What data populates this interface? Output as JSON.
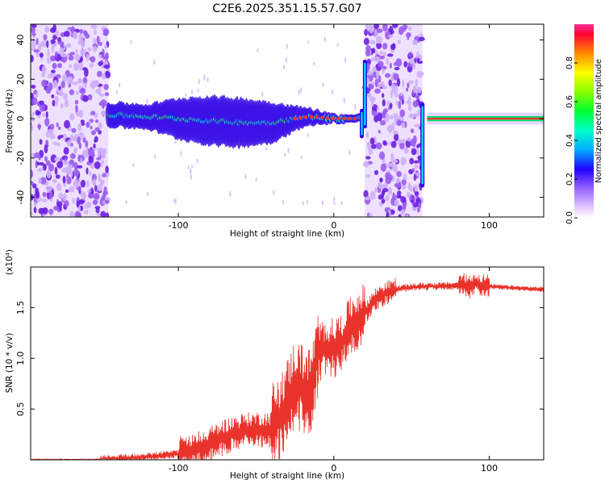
{
  "figure": {
    "title": "C2E6.2025.351.15.57.G07"
  },
  "chart_data": [
    {
      "type": "heatmap",
      "name": "spectrogram",
      "xlabel": "Height of straight line (km)",
      "ylabel": "Frequency (Hz)",
      "xlim": [
        -195,
        135
      ],
      "ylim": [
        -50,
        48
      ],
      "x_ticks": [
        -100,
        0,
        100
      ],
      "x_tick_labels": [
        "-100",
        "0",
        "100"
      ],
      "y_ticks": [
        -40,
        -20,
        0,
        20,
        40
      ],
      "y_tick_labels": [
        "-40",
        "-20",
        "0",
        "20",
        "40"
      ],
      "colorbar": {
        "label": "Normalized spectral amplitude",
        "range": [
          0,
          1
        ],
        "ticks": [
          0.0,
          0.2,
          0.4,
          0.6,
          0.8
        ],
        "tick_labels": [
          "0.0",
          "0.2",
          "0.4",
          "0.6",
          "0.8"
        ]
      },
      "noise_regions": [
        {
          "x_start": -195,
          "x_end": -145
        },
        {
          "x_start": 20,
          "x_end": 57
        }
      ],
      "ridge": {
        "description": "tone near 0 Hz",
        "x": [
          -145,
          -120,
          -100,
          -80,
          -60,
          -40,
          -25,
          -15,
          0,
          10,
          18
        ],
        "center_hz": [
          2,
          1,
          0,
          -1,
          -2,
          -2,
          0,
          1,
          0,
          0,
          0
        ],
        "spread_hz": [
          3,
          3,
          5,
          6,
          6,
          5,
          3,
          2,
          1,
          1,
          1
        ]
      },
      "spikes": [
        {
          "x": 18,
          "low_hz": -10,
          "high_hz": 5
        },
        {
          "x": 20,
          "low_hz": -5,
          "high_hz": 30
        },
        {
          "x": 57,
          "low_hz": -35,
          "high_hz": 8
        }
      ],
      "clean_tone": {
        "x_start": 60,
        "x_end": 135,
        "hz": 0
      }
    },
    {
      "type": "line",
      "name": "snr",
      "xlabel": "Height of straight line (km)",
      "ylabel": "SNR (10 * v/v)",
      "y_multiplier": "(x10⁴)",
      "xlim": [
        -195,
        135
      ],
      "ylim": [
        0,
        1.9
      ],
      "x_ticks": [
        -100,
        0,
        100
      ],
      "x_tick_labels": [
        "-100",
        "0",
        "100"
      ],
      "y_ticks": [
        0.5,
        1.0,
        1.5
      ],
      "y_tick_labels": [
        "0.5",
        "1.0",
        "1.5"
      ],
      "color": "#e8322a",
      "series": [
        {
          "name": "SNR",
          "x": [
            -195,
            -180,
            -160,
            -140,
            -120,
            -100,
            -90,
            -80,
            -70,
            -60,
            -50,
            -40,
            -30,
            -25,
            -20,
            -15,
            -10,
            -5,
            0,
            5,
            10,
            15,
            20,
            25,
            30,
            40,
            50,
            60,
            70,
            80,
            85,
            88,
            90,
            95,
            100,
            110,
            120,
            135
          ],
          "values": [
            0.0,
            0.0,
            0.0,
            0.01,
            0.03,
            0.06,
            0.09,
            0.15,
            0.23,
            0.28,
            0.3,
            0.3,
            0.55,
            0.75,
            0.7,
            0.65,
            1.05,
            1.1,
            1.1,
            1.15,
            1.3,
            1.38,
            1.45,
            1.55,
            1.62,
            1.68,
            1.7,
            1.71,
            1.71,
            1.72,
            1.72,
            1.7,
            1.74,
            1.72,
            1.71,
            1.7,
            1.69,
            1.68
          ]
        }
      ],
      "noise_amplitude": [
        {
          "x_start": -195,
          "x_end": -150,
          "amp": 0.005
        },
        {
          "x_start": -150,
          "x_end": -100,
          "amp": 0.04
        },
        {
          "x_start": -100,
          "x_end": -40,
          "amp": 0.18
        },
        {
          "x_start": -40,
          "x_end": -10,
          "amp": 0.45
        },
        {
          "x_start": -10,
          "x_end": 20,
          "amp": 0.3
        },
        {
          "x_start": 20,
          "x_end": 40,
          "amp": 0.12
        },
        {
          "x_start": 40,
          "x_end": 80,
          "amp": 0.04
        },
        {
          "x_start": 80,
          "x_end": 100,
          "amp": 0.12
        },
        {
          "x_start": 100,
          "x_end": 135,
          "amp": 0.025
        }
      ]
    }
  ]
}
